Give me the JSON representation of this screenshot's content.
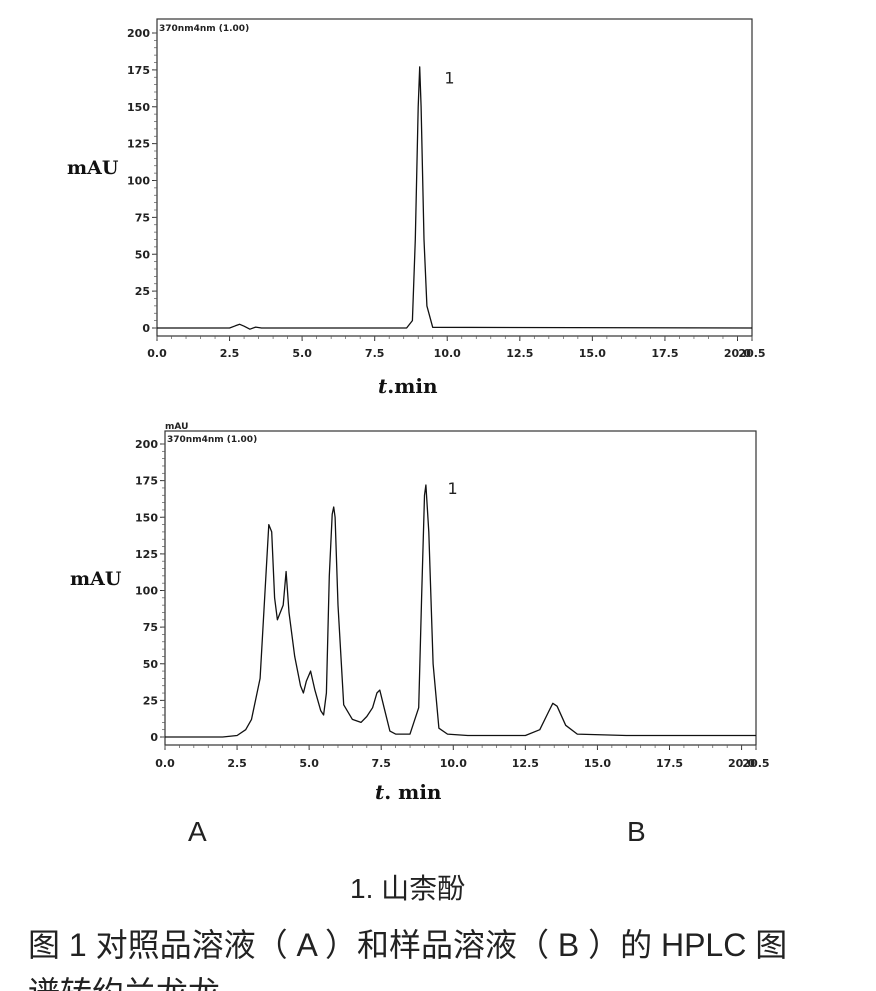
{
  "chart_data": [
    {
      "type": "line",
      "panel": "A",
      "header": "370nm4nm (1.00)",
      "ylabel": "mAU",
      "xlabel_italic": "t",
      "xlabel_rest": ".min",
      "xlim": [
        0,
        20.5
      ],
      "ylim": [
        0,
        200
      ],
      "xticks": [
        "0.0",
        "2.5",
        "5.0",
        "7.5",
        "10.0",
        "12.5",
        "15.0",
        "17.5",
        "20.0",
        "20.5"
      ],
      "yticks": [
        "0",
        "25",
        "50",
        "75",
        "100",
        "125",
        "150",
        "175",
        "200"
      ],
      "peak_label": {
        "text": "1",
        "x": 9.9,
        "y": 170
      },
      "series": [
        {
          "x": [
            0,
            2.5,
            2.7,
            2.85,
            3.0,
            3.2,
            3.4,
            3.6,
            8.6,
            8.8,
            8.9,
            9.0,
            9.05,
            9.1,
            9.2,
            9.3,
            9.5,
            20.5
          ],
          "y": [
            0,
            0,
            1.5,
            2.5,
            1.2,
            -0.8,
            0.6,
            0,
            0,
            5,
            60,
            150,
            177,
            150,
            60,
            15,
            0.5,
            0
          ]
        }
      ]
    },
    {
      "type": "line",
      "panel": "B",
      "header": "370nm4nm (1.00)",
      "corner_unit": "mAU",
      "ylabel": "mAU",
      "xlabel_italic": "t",
      "xlabel_rest": ". min",
      "xlim": [
        0,
        20.5
      ],
      "ylim": [
        0,
        200
      ],
      "xticks": [
        "0.0",
        "2.5",
        "5.0",
        "7.5",
        "10.0",
        "12.5",
        "15.0",
        "17.5",
        "20.0",
        "20.5"
      ],
      "yticks": [
        "0",
        "25",
        "50",
        "75",
        "100",
        "125",
        "150",
        "175",
        "200"
      ],
      "peak_label": {
        "text": "1",
        "x": 9.8,
        "y": 170
      },
      "series": [
        {
          "x": [
            0,
            2.0,
            2.5,
            2.8,
            3.0,
            3.3,
            3.5,
            3.6,
            3.7,
            3.8,
            3.9,
            4.1,
            4.2,
            4.3,
            4.5,
            4.7,
            4.8,
            4.9,
            5.05,
            5.2,
            5.4,
            5.5,
            5.6,
            5.7,
            5.8,
            5.85,
            5.9,
            6.0,
            6.2,
            6.5,
            6.8,
            7.0,
            7.2,
            7.35,
            7.45,
            7.6,
            7.8,
            8.0,
            8.5,
            8.8,
            8.9,
            9.0,
            9.05,
            9.15,
            9.3,
            9.5,
            9.8,
            10.5,
            12.5,
            13.0,
            13.3,
            13.45,
            13.6,
            13.9,
            14.3,
            16.0,
            20.5
          ],
          "y": [
            0,
            0,
            1,
            5,
            12,
            40,
            110,
            145,
            140,
            95,
            80,
            90,
            113,
            85,
            55,
            35,
            30,
            38,
            45,
            32,
            18,
            15,
            30,
            110,
            152,
            157,
            150,
            90,
            22,
            12,
            10,
            14,
            20,
            30,
            32,
            20,
            4,
            2,
            2,
            20,
            95,
            165,
            172,
            140,
            50,
            6,
            2,
            1,
            1,
            5,
            17,
            23,
            21,
            8,
            2,
            1,
            1
          ]
        }
      ]
    }
  ],
  "labels": {
    "panel_a": "A",
    "panel_b": "B",
    "compound": "1. 山柰酚",
    "caption_line1": "图 1 对照品溶液（ A ）和样品溶液（ B ）的 HPLC 图",
    "caption_line2": "谱转约兰龙龙"
  }
}
